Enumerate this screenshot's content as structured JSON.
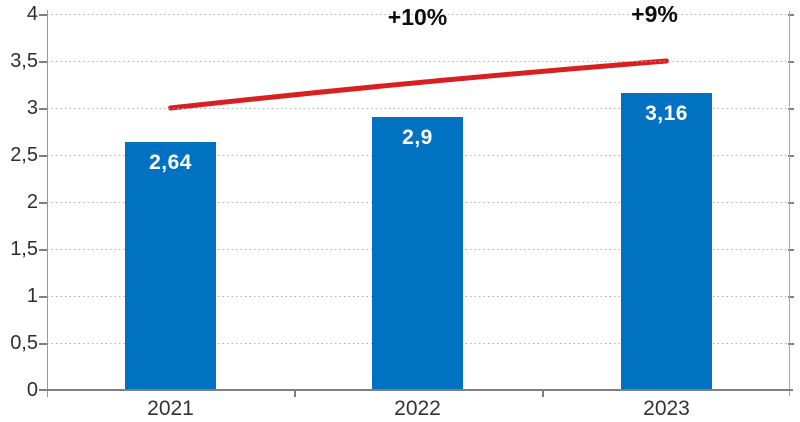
{
  "chart_data": {
    "type": "bar",
    "title": "",
    "xlabel": "",
    "ylabel": "",
    "categories": [
      "2021",
      "2022",
      "2023"
    ],
    "values": [
      2.64,
      2.9,
      3.16
    ],
    "value_labels": [
      "2,64",
      "2,9",
      "3,16"
    ],
    "bar_color": "#0072c1",
    "bar_label_color": "#ffffff",
    "ylim": [
      0,
      4
    ],
    "y_tick_values": [
      0,
      0.5,
      1,
      1.5,
      2,
      2.5,
      3,
      3.5,
      4
    ],
    "y_tick_labels": [
      "0",
      "0,5",
      "1",
      "1,5",
      "2",
      "2,5",
      "3",
      "3,5",
      "4"
    ],
    "grid": "horizontal-dashed",
    "legend": "none",
    "trend_line": {
      "type": "line",
      "color": "#d92020",
      "x": [
        "2021",
        "2022",
        "2023"
      ],
      "values": [
        3.0,
        3.27,
        3.5
      ],
      "annotations": [
        {
          "label": "+10%",
          "at_category": "2022"
        },
        {
          "label": "+9%",
          "at_category": "2023"
        }
      ]
    }
  }
}
